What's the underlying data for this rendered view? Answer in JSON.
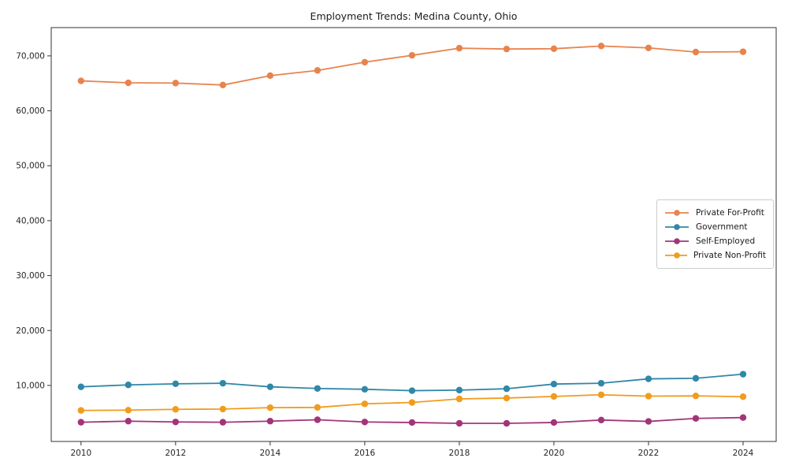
{
  "title": "Employment Trends: Medina County, Ohio",
  "chart_data": {
    "type": "line",
    "title": "Employment Trends: Medina County, Ohio",
    "xlabel": "",
    "ylabel": "",
    "x": [
      2010,
      2011,
      2012,
      2013,
      2014,
      2015,
      2016,
      2017,
      2018,
      2019,
      2020,
      2021,
      2022,
      2023,
      2024
    ],
    "series": [
      {
        "name": "Private For-Profit",
        "color": "#e8834e",
        "values": [
          65450,
          65100,
          65050,
          64700,
          66400,
          67350,
          68850,
          70100,
          71400,
          71250,
          71300,
          71800,
          71450,
          70700,
          70750
        ]
      },
      {
        "name": "Government",
        "color": "#3087a8",
        "values": [
          9750,
          10100,
          10300,
          10400,
          9750,
          9450,
          9300,
          9050,
          9150,
          9400,
          10250,
          10400,
          11200,
          11300,
          12050
        ]
      },
      {
        "name": "Self-Employed",
        "color": "#a23579",
        "values": [
          3300,
          3500,
          3350,
          3300,
          3500,
          3750,
          3350,
          3250,
          3100,
          3100,
          3250,
          3700,
          3450,
          4000,
          4150
        ]
      },
      {
        "name": "Private Non-Profit",
        "color": "#f09c1e",
        "values": [
          5450,
          5500,
          5650,
          5700,
          5950,
          6000,
          6650,
          6900,
          7550,
          7700,
          8000,
          8300,
          8050,
          8100,
          7950
        ]
      }
    ],
    "xtick_labels": [
      "2010",
      "2012",
      "2014",
      "2016",
      "2018",
      "2020",
      "2022",
      "2024"
    ],
    "xticks": [
      2010,
      2012,
      2014,
      2016,
      2018,
      2020,
      2022,
      2024
    ],
    "ytick_labels": [
      "10,000",
      "20,000",
      "30,000",
      "40,000",
      "50,000",
      "60,000",
      "70,000"
    ],
    "yticks": [
      10000,
      20000,
      30000,
      40000,
      50000,
      60000,
      70000
    ],
    "xlim": [
      2009.37,
      2024.7
    ],
    "ylim": [
      -200,
      75150
    ],
    "grid": false,
    "legend_position": "center right"
  }
}
